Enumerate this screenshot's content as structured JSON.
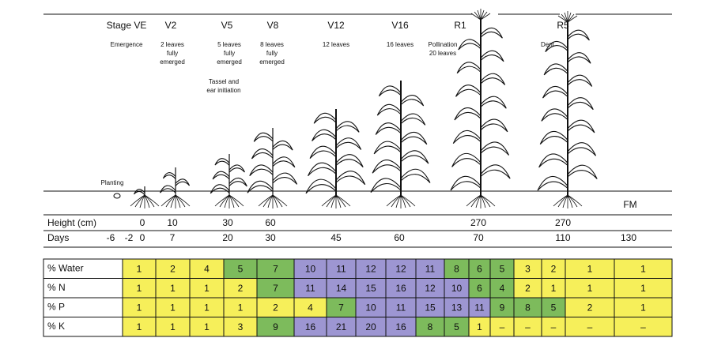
{
  "stages": [
    {
      "name": "Stage VE",
      "note": [
        "Emergence"
      ]
    },
    {
      "name": "V2",
      "note": [
        "2 leaves",
        "fully",
        "emerged"
      ]
    },
    {
      "name": "V5",
      "note": [
        "5 leaves",
        "fully",
        "emerged"
      ],
      "extra": [
        "Tassel and",
        "ear initiation"
      ]
    },
    {
      "name": "V8",
      "note": [
        "8 leaves",
        "fully",
        "emerged"
      ]
    },
    {
      "name": "V12",
      "note": [
        "12 leaves"
      ]
    },
    {
      "name": "V16",
      "note": [
        "16 leaves"
      ]
    },
    {
      "name": "R1",
      "note": [
        "Pollination",
        "20 leaves"
      ]
    },
    {
      "name": "R5",
      "note": [
        "Dent"
      ]
    }
  ],
  "planting": "Planting",
  "fm": "FM",
  "height": {
    "label": "Height (cm)",
    "values": [
      0,
      10,
      30,
      60,
      270,
      270
    ]
  },
  "days": {
    "label": "Days",
    "values": [
      -6,
      -2,
      0,
      7,
      20,
      30,
      45,
      60,
      70,
      110,
      130
    ]
  },
  "table": {
    "rows": [
      {
        "label": "% Water",
        "cells": [
          "1",
          "2",
          "4",
          "5",
          "7",
          "10",
          "11",
          "12",
          "12",
          "11",
          "8",
          "6",
          "5",
          "3",
          "2",
          "1",
          "1"
        ],
        "colors": [
          "#f6ef5a",
          "#f6ef5a",
          "#f6ef5a",
          "#7dbb5c",
          "#7dbb5c",
          "#9d96d2",
          "#9d96d2",
          "#9d96d2",
          "#9d96d2",
          "#9d96d2",
          "#7dbb5c",
          "#7dbb5c",
          "#7dbb5c",
          "#f6ef5a",
          "#f6ef5a",
          "#f6ef5a",
          "#f6ef5a"
        ]
      },
      {
        "label": "% N",
        "cells": [
          "1",
          "1",
          "1",
          "2",
          "7",
          "11",
          "14",
          "15",
          "16",
          "12",
          "10",
          "6",
          "4",
          "2",
          "1",
          "1",
          "1"
        ],
        "colors": [
          "#f6ef5a",
          "#f6ef5a",
          "#f6ef5a",
          "#f6ef5a",
          "#7dbb5c",
          "#9d96d2",
          "#9d96d2",
          "#9d96d2",
          "#9d96d2",
          "#9d96d2",
          "#9d96d2",
          "#7dbb5c",
          "#7dbb5c",
          "#f6ef5a",
          "#f6ef5a",
          "#f6ef5a",
          "#f6ef5a"
        ]
      },
      {
        "label": "% P",
        "cells": [
          "1",
          "1",
          "1",
          "1",
          "2",
          "4",
          "7",
          "10",
          "11",
          "15",
          "13",
          "11",
          "9",
          "8",
          "5",
          "2",
          "1"
        ],
        "colors": [
          "#f6ef5a",
          "#f6ef5a",
          "#f6ef5a",
          "#f6ef5a",
          "#f6ef5a",
          "#f6ef5a",
          "#7dbb5c",
          "#9d96d2",
          "#9d96d2",
          "#9d96d2",
          "#9d96d2",
          "#9d96d2",
          "#7dbb5c",
          "#7dbb5c",
          "#7dbb5c",
          "#f6ef5a",
          "#f6ef5a"
        ]
      },
      {
        "label": "% K",
        "cells": [
          "1",
          "1",
          "1",
          "3",
          "9",
          "16",
          "21",
          "20",
          "16",
          "8",
          "5",
          "1",
          "–",
          "–",
          "–",
          "–",
          "–"
        ],
        "colors": [
          "#f6ef5a",
          "#f6ef5a",
          "#f6ef5a",
          "#f6ef5a",
          "#7dbb5c",
          "#9d96d2",
          "#9d96d2",
          "#9d96d2",
          "#9d96d2",
          "#7dbb5c",
          "#7dbb5c",
          "#f6ef5a",
          "#f6ef5a",
          "#f6ef5a",
          "#f6ef5a",
          "#f6ef5a",
          "#f6ef5a"
        ]
      }
    ]
  }
}
